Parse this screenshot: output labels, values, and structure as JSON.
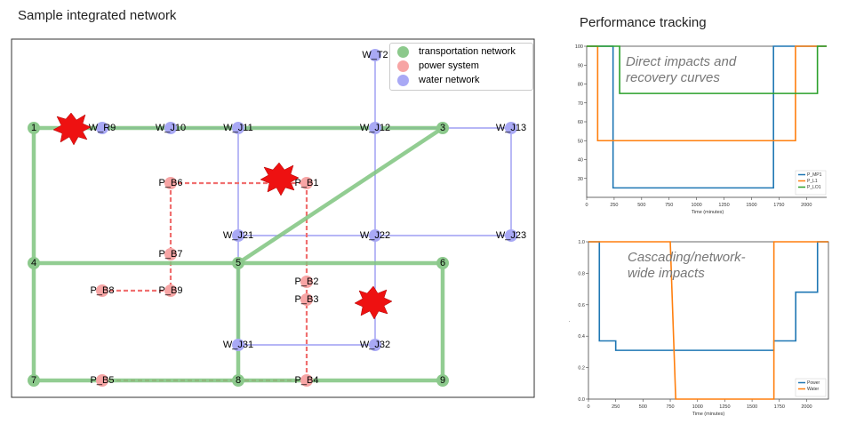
{
  "network": {
    "title": "Sample integrated network",
    "legend": [
      {
        "label": "transportation network",
        "color": "#8cc98c"
      },
      {
        "label": "power system",
        "color": "#f7a5a5"
      },
      {
        "label": "water network",
        "color": "#a9a9f5"
      }
    ],
    "nodes": {
      "transport": [
        "1",
        "3",
        "4",
        "5",
        "6",
        "7",
        "8",
        "9"
      ],
      "power": [
        "P_B6",
        "P_B1",
        "P_B7",
        "P_B8",
        "P_B9",
        "P_B2",
        "P_B3",
        "P_B5",
        "P_B4"
      ],
      "water": [
        "W_R9",
        "W_J10",
        "W_J11",
        "W_J12",
        "W_J13",
        "W_T2",
        "W_J21",
        "W_J22",
        "W_J23",
        "W_J31",
        "W_J32"
      ]
    },
    "damage_icons": [
      "explosion-icon",
      "explosion-icon",
      "explosion-icon"
    ]
  },
  "performance": {
    "title": "Performance tracking",
    "colors": {
      "power": "#1f77b4",
      "water": "#ff7f0e",
      "transport": "#2ca02c"
    }
  },
  "chart_data": [
    {
      "type": "line",
      "annotation": "Direct impacts and recovery curves",
      "xlabel": "Time (minutes)",
      "ylabel": "Damage level (%)",
      "xlim": [
        0,
        2200
      ],
      "ylim": [
        20,
        100
      ],
      "xticks": [
        0,
        250,
        500,
        750,
        1000,
        1250,
        1500,
        1750,
        2000
      ],
      "yticks": [
        30,
        40,
        50,
        60,
        70,
        80,
        90,
        100
      ],
      "legend_position": "lower-right",
      "series": [
        {
          "name": "P_MP1",
          "color": "#1f77b4",
          "x": [
            0,
            240,
            240,
            1700,
            1700,
            2200
          ],
          "y": [
            100,
            100,
            25,
            25,
            100,
            100
          ]
        },
        {
          "name": "P_L1",
          "color": "#ff7f0e",
          "x": [
            0,
            100,
            100,
            1900,
            1900,
            2200
          ],
          "y": [
            100,
            100,
            50,
            50,
            100,
            100
          ]
        },
        {
          "name": "P_LO1",
          "color": "#2ca02c",
          "x": [
            0,
            300,
            300,
            2100,
            2100,
            2200
          ],
          "y": [
            100,
            100,
            75,
            75,
            100,
            100
          ]
        }
      ]
    },
    {
      "type": "line",
      "annotation": "Cascading/network-wide impacts",
      "xlabel": "Time (minutes)",
      "ylabel": "Consumption ratio",
      "xlim": [
        0,
        2200
      ],
      "ylim": [
        0,
        1.0
      ],
      "xticks": [
        0,
        250,
        500,
        750,
        1000,
        1250,
        1500,
        1750,
        2000
      ],
      "yticks": [
        0.0,
        0.2,
        0.4,
        0.6,
        0.8,
        1.0
      ],
      "legend_position": "lower-right",
      "series": [
        {
          "name": "Power",
          "color": "#1f77b4",
          "x": [
            0,
            100,
            100,
            250,
            250,
            1700,
            1700,
            1900,
            1900,
            2100,
            2100,
            2200
          ],
          "y": [
            1.0,
            1.0,
            0.37,
            0.37,
            0.31,
            0.31,
            0.37,
            0.37,
            0.68,
            0.68,
            1.0,
            1.0
          ]
        },
        {
          "name": "Water",
          "color": "#ff7f0e",
          "x": [
            0,
            750,
            800,
            1700,
            1700,
            2200
          ],
          "y": [
            1.0,
            1.0,
            0.0,
            0.0,
            1.0,
            1.0
          ]
        }
      ]
    }
  ]
}
